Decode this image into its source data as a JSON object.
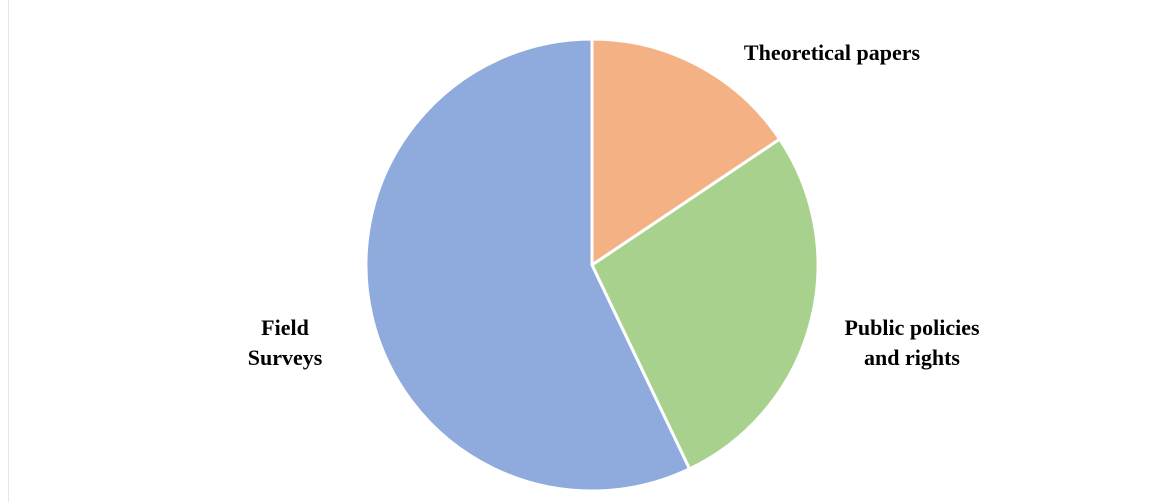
{
  "chart_data": {
    "type": "pie",
    "title": "",
    "start_angle_deg": 0,
    "direction": "clockwise",
    "slices": [
      {
        "label_lines": [
          "Theoretical papers"
        ],
        "value": 15.6,
        "color": "#F4B183"
      },
      {
        "label_lines": [
          "Public policies",
          "and rights"
        ],
        "value": 27.3,
        "color": "#A9D18E"
      },
      {
        "label_lines": [
          "Field",
          "Surveys"
        ],
        "value": 57.1,
        "color": "#8FAADC"
      }
    ],
    "legend": "none",
    "slice_border_color": "#FFFFFF"
  }
}
